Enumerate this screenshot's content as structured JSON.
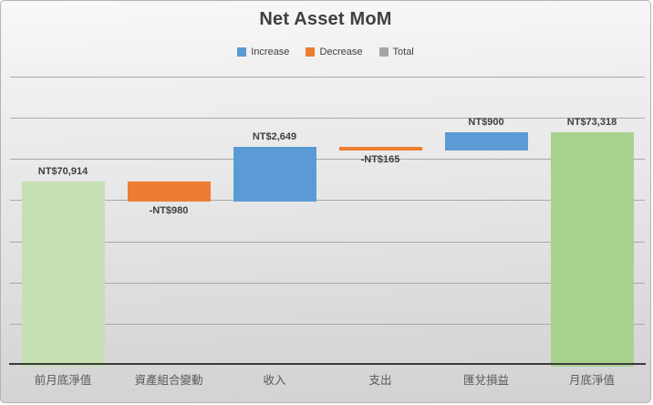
{
  "chart": {
    "title": "Net Asset MoM",
    "legend": [
      {
        "name": "increase",
        "label": "Increase",
        "color": "#5B9BD5"
      },
      {
        "name": "decrease",
        "label": "Decrease",
        "color": "#ED7D31"
      },
      {
        "name": "total",
        "label": "Total",
        "color": "#A5A5A5"
      }
    ]
  },
  "chart_data": {
    "type": "bar",
    "subtype": "waterfall",
    "title": "Net Asset MoM",
    "categories": [
      "前月底淨值",
      "資產組合變動",
      "收入",
      "支出",
      "匯兌損益",
      "月底淨值"
    ],
    "series": [
      {
        "name": "Net Asset MoM",
        "values": [
          70914,
          -980,
          2649,
          -165,
          900,
          73318
        ]
      }
    ],
    "cumulative": [
      70914,
      69934,
      72583,
      72418,
      73318,
      73318
    ],
    "bar_types": [
      "total",
      "decrease",
      "increase",
      "decrease",
      "increase",
      "total"
    ],
    "data_labels": [
      "NT$70,914",
      "-NT$980",
      "NT$2,649",
      "-NT$165",
      "NT$900",
      "NT$73,318"
    ],
    "bar_colors": [
      "#C6E0B4",
      "#ED7D31",
      "#5B9BD5",
      "#ED7D31",
      "#5B9BD5",
      "#A9D18E"
    ],
    "xlabel": "",
    "ylabel": "",
    "ylim": [
      62000,
      76000
    ],
    "grid_step": 2000,
    "grid": true,
    "y_axis_labels_visible": false,
    "legend_position": "top",
    "colors": {
      "title_text": "#404040",
      "label_text": "#404040",
      "category_text": "#595959",
      "gridline": "#A9A9A9",
      "axis_line": "#3B3B3B"
    }
  }
}
